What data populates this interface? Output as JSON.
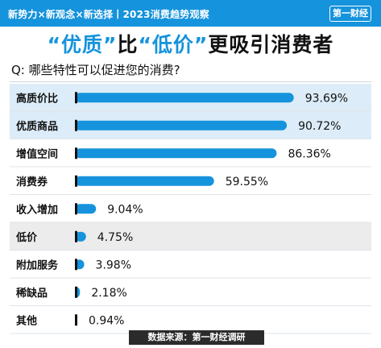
{
  "header": {
    "tagline": "新势力×新观念×新选择丨2023消费趋势观察",
    "brand": "第一财经"
  },
  "headline": {
    "quote1": "“优质”",
    "mid": "比",
    "quote2": "“低价”",
    "rest": "更吸引消费者"
  },
  "question": "Q: 哪些特性可以促进您的消费?",
  "footer": {
    "source": "数据来源：第一财经调研"
  },
  "colors": {
    "accent": "#1593dc",
    "highlight_row": "#dcecf8",
    "alt_row": "#ececec",
    "dark": "#111111"
  },
  "chart_data": {
    "type": "bar",
    "orientation": "horizontal",
    "unit": "%",
    "categories": [
      "高质价比",
      "优质商品",
      "增值空间",
      "消费券",
      "收入增加",
      "低价",
      "附加服务",
      "稀缺品",
      "其他"
    ],
    "values": [
      93.69,
      90.72,
      86.36,
      59.55,
      9.04,
      4.75,
      3.98,
      2.18,
      0.94
    ],
    "value_labels": [
      "93.69%",
      "90.72%",
      "86.36%",
      "59.55%",
      "9.04%",
      "4.75%",
      "3.98%",
      "2.18%",
      "0.94%"
    ],
    "highlighted": [
      0,
      1
    ],
    "xlim": [
      0,
      100
    ],
    "grid": false,
    "legend": "none"
  }
}
